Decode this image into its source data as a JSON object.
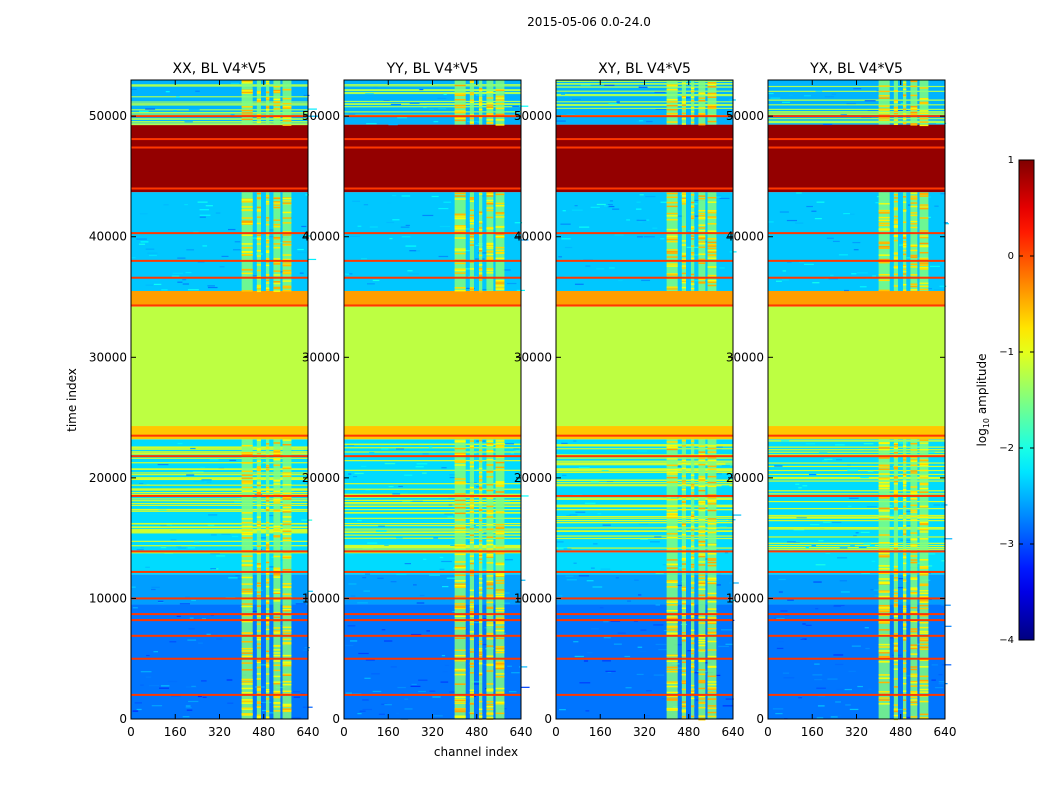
{
  "chart_data": {
    "type": "heatmap",
    "suptitle": "2015-05-06 0.0-24.0",
    "xlabel": "channel index",
    "ylabel": "time index",
    "xlim": [
      0,
      640
    ],
    "ylim": [
      0,
      53000
    ],
    "x_ticks": [
      0,
      160,
      320,
      480,
      640
    ],
    "y_ticks": [
      0,
      10000,
      20000,
      30000,
      40000,
      50000
    ],
    "colorbar": {
      "label_prefix": "log",
      "label_sub": "10",
      "label_suffix": " amplitude",
      "range": [
        -4,
        1
      ],
      "ticks": [
        1,
        0,
        -1,
        -2,
        -3,
        -4
      ],
      "tick_labels": [
        "1",
        "0",
        "−1",
        "−2",
        "−3",
        "−4"
      ],
      "colormap": "jet"
    },
    "panels": [
      {
        "title": "XX, BL V4*V5"
      },
      {
        "title": "YY, BL V4*V5"
      },
      {
        "title": "XY, BL V4*V5"
      },
      {
        "title": "YX, BL V4*V5"
      }
    ],
    "bands": [
      {
        "t0": 0,
        "t1": 9500,
        "kind": "noise",
        "value": -2.8
      },
      {
        "t0": 9500,
        "t1": 12000,
        "kind": "noise",
        "value": -2.6
      },
      {
        "t0": 12000,
        "t1": 13800,
        "kind": "noise",
        "value": -2.3
      },
      {
        "t0": 13800,
        "t1": 23200,
        "kind": "stripes",
        "value": -2.3
      },
      {
        "t0": 23200,
        "t1": 24300,
        "kind": "flat",
        "value": -0.6
      },
      {
        "t0": 24300,
        "t1": 34200,
        "kind": "flat",
        "value": -1.2
      },
      {
        "t0": 34200,
        "t1": 35500,
        "kind": "flat",
        "value": -0.4
      },
      {
        "t0": 35500,
        "t1": 43700,
        "kind": "noise",
        "value": -2.4
      },
      {
        "t0": 43700,
        "t1": 49300,
        "kind": "flat",
        "value": 0.9
      },
      {
        "t0": 49300,
        "t1": 53000,
        "kind": "stripes",
        "value": -2.5
      }
    ],
    "flag_lines": [
      2000,
      5000,
      6900,
      8200,
      8700,
      10000,
      12200,
      13900,
      18500,
      21800,
      23500,
      34300,
      36600,
      38000,
      40300,
      44000,
      47400,
      48100,
      50000
    ],
    "rfi_channels": [
      [
        400,
        440
      ],
      [
        455,
        470
      ],
      [
        488,
        500
      ],
      [
        515,
        540
      ],
      [
        548,
        580
      ]
    ]
  }
}
